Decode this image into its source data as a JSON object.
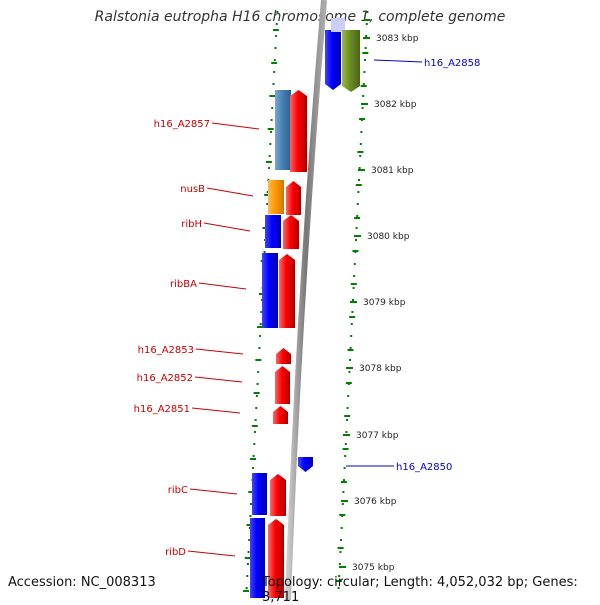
{
  "title": "Ralstonia eutropha H16 chromosome 1, complete genome",
  "accession_text": "Accession: NC_008313",
  "topology_text": "Topology: circular; Length: 4,052,032 bp; Genes: 3,711",
  "colors": {
    "forward_gene": "#ff0000",
    "reverse_gene": "#0000ff",
    "orange_gene": "#ff9900",
    "steelblue_gene": "#4682b4",
    "olive_gene": "#6b8e23",
    "tick": "#008000",
    "label_left": "#cc0000",
    "label_right": "#0000cc",
    "backbone": "#888888"
  },
  "scale": {
    "ticks_kbp": [
      3083,
      3082,
      3081,
      3080,
      3079,
      3078,
      3077,
      3076,
      3075
    ],
    "tick_labels": [
      "3083 kbp",
      "3082 kbp",
      "3081 kbp",
      "3080 kbp",
      "3079 kbp",
      "3078 kbp",
      "3077 kbp",
      "3076 kbp",
      "3075 kbp"
    ]
  },
  "gene_labels_left": [
    "h16_A2857",
    "nusB",
    "ribH",
    "ribBA",
    "h16_A2853",
    "h16_A2852",
    "h16_A2851",
    "ribC",
    "ribD"
  ],
  "gene_labels_right": [
    "h16_A2858",
    "h16_A2850"
  ]
}
